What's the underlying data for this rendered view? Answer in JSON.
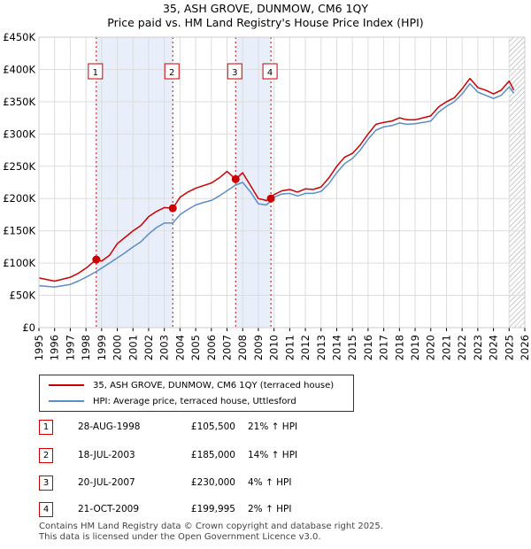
{
  "header": {
    "title": "35, ASH GROVE, DUNMOW, CM6 1QY",
    "subtitle": "Price paid vs. HM Land Registry's House Price Index (HPI)"
  },
  "chart_data": {
    "type": "line",
    "xlim": [
      1995,
      2026
    ],
    "ylim": [
      0,
      450000
    ],
    "x_ticks": [
      "1995",
      "1996",
      "1997",
      "1998",
      "1999",
      "2000",
      "2001",
      "2002",
      "2003",
      "2004",
      "2005",
      "2006",
      "2007",
      "2008",
      "2009",
      "2010",
      "2011",
      "2012",
      "2013",
      "2014",
      "2015",
      "2016",
      "2017",
      "2018",
      "2019",
      "2020",
      "2021",
      "2022",
      "2023",
      "2024",
      "2025",
      "2026"
    ],
    "y_ticks": [
      {
        "value": 0,
        "label": "£0"
      },
      {
        "value": 50000,
        "label": "£50K"
      },
      {
        "value": 100000,
        "label": "£100K"
      },
      {
        "value": 150000,
        "label": "£150K"
      },
      {
        "value": 200000,
        "label": "£200K"
      },
      {
        "value": 250000,
        "label": "£250K"
      },
      {
        "value": 300000,
        "label": "£300K"
      },
      {
        "value": 350000,
        "label": "£350K"
      },
      {
        "value": 400000,
        "label": "£400K"
      },
      {
        "value": 450000,
        "label": "£450K"
      }
    ],
    "shaded_ranges": [
      [
        1998.66,
        2003.54
      ],
      [
        2007.55,
        2009.8
      ]
    ],
    "future_hatch_from": 2025.0,
    "series": [
      {
        "name": "35, ASH GROVE, DUNMOW, CM6 1QY (terraced house)",
        "color": "#cc0000",
        "x": [
          1995.0,
          1996.0,
          1997.0,
          1997.5,
          1998.0,
          1998.66,
          1999.0,
          1999.5,
          2000.0,
          2000.5,
          2001.0,
          2001.5,
          2002.0,
          2002.5,
          2003.0,
          2003.54,
          2004.0,
          2004.5,
          2005.0,
          2005.5,
          2006.0,
          2006.5,
          2007.0,
          2007.55,
          2008.0,
          2008.5,
          2009.0,
          2009.5,
          2009.8,
          2010.0,
          2010.5,
          2011.0,
          2011.5,
          2012.0,
          2012.5,
          2013.0,
          2013.5,
          2014.0,
          2014.5,
          2015.0,
          2015.5,
          2016.0,
          2016.5,
          2017.0,
          2017.5,
          2018.0,
          2018.5,
          2019.0,
          2019.5,
          2020.0,
          2020.5,
          2021.0,
          2021.5,
          2022.0,
          2022.5,
          2023.0,
          2023.5,
          2024.0,
          2024.5,
          2025.0,
          2025.3
        ],
        "y": [
          77000,
          72000,
          78000,
          84000,
          92000,
          105500,
          103000,
          112000,
          130000,
          140000,
          150000,
          158000,
          172000,
          180000,
          186000,
          185000,
          202000,
          210000,
          216000,
          220000,
          224000,
          232000,
          242000,
          230000,
          240000,
          220000,
          200000,
          197000,
          199995,
          206000,
          212000,
          214000,
          210000,
          215000,
          214000,
          218000,
          232000,
          250000,
          264000,
          270000,
          283000,
          300000,
          315000,
          318000,
          320000,
          325000,
          322000,
          322000,
          325000,
          328000,
          342000,
          350000,
          356000,
          370000,
          386000,
          372000,
          368000,
          362000,
          368000,
          382000,
          368000
        ]
      },
      {
        "name": "HPI: Average price, terraced house, Uttlesford",
        "color": "#5b8dc9",
        "x": [
          1995.0,
          1996.0,
          1997.0,
          1997.5,
          1998.0,
          1998.66,
          1999.0,
          1999.5,
          2000.0,
          2000.5,
          2001.0,
          2001.5,
          2002.0,
          2002.5,
          2003.0,
          2003.54,
          2004.0,
          2004.5,
          2005.0,
          2005.5,
          2006.0,
          2006.5,
          2007.0,
          2007.55,
          2008.0,
          2008.5,
          2009.0,
          2009.5,
          2009.8,
          2010.0,
          2010.5,
          2011.0,
          2011.5,
          2012.0,
          2012.5,
          2013.0,
          2013.5,
          2014.0,
          2014.5,
          2015.0,
          2015.5,
          2016.0,
          2016.5,
          2017.0,
          2017.5,
          2018.0,
          2018.5,
          2019.0,
          2019.5,
          2020.0,
          2020.5,
          2021.0,
          2021.5,
          2022.0,
          2022.5,
          2023.0,
          2023.5,
          2024.0,
          2024.5,
          2025.0,
          2025.3
        ],
        "y": [
          65000,
          63000,
          67000,
          72000,
          78000,
          87000,
          92000,
          100000,
          108000,
          116000,
          125000,
          133000,
          145000,
          155000,
          162000,
          162000,
          175000,
          183000,
          190000,
          194000,
          197000,
          204000,
          212000,
          221000,
          225000,
          210000,
          192000,
          190000,
          196000,
          202000,
          207000,
          208000,
          204000,
          208000,
          208000,
          211000,
          223000,
          240000,
          254000,
          262000,
          275000,
          292000,
          306000,
          311000,
          313000,
          317000,
          315000,
          316000,
          318000,
          320000,
          334000,
          343000,
          350000,
          362000,
          378000,
          365000,
          360000,
          355000,
          360000,
          373000,
          363000
        ]
      }
    ],
    "sales": [
      {
        "n": "1",
        "date": "28-AUG-1998",
        "x": 1998.66,
        "price": 105500,
        "price_label": "£105,500",
        "hpi": "21% ↑ HPI"
      },
      {
        "n": "2",
        "date": "18-JUL-2003",
        "x": 2003.54,
        "price": 185000,
        "price_label": "£185,000",
        "hpi": "14% ↑ HPI"
      },
      {
        "n": "3",
        "date": "20-JUL-2007",
        "x": 2007.55,
        "price": 230000,
        "price_label": "£230,000",
        "hpi": "4% ↑ HPI"
      },
      {
        "n": "4",
        "date": "21-OCT-2009",
        "x": 2009.8,
        "price": 199995,
        "price_label": "£199,995",
        "hpi": "2% ↑ HPI"
      }
    ]
  },
  "legend": {
    "property_label": "35, ASH GROVE, DUNMOW, CM6 1QY (terraced house)",
    "hpi_label": "HPI: Average price, terraced house, Uttlesford"
  },
  "footer": {
    "line1": "Contains HM Land Registry data © Crown copyright and database right 2025.",
    "line2": "This data is licensed under the Open Government Licence v3.0."
  }
}
